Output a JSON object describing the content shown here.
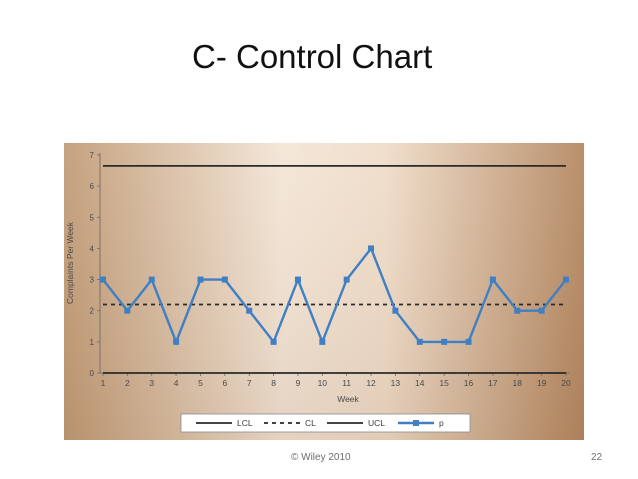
{
  "slide": {
    "title": "C- Control Chart",
    "copyright": "© Wiley 2010",
    "page_number": "22"
  },
  "chart_data": {
    "type": "line",
    "xlabel": "Week",
    "ylabel": "Complaints Per Week",
    "x": [
      1,
      2,
      3,
      4,
      5,
      6,
      7,
      8,
      9,
      10,
      11,
      12,
      13,
      14,
      15,
      16,
      17,
      18,
      19,
      20
    ],
    "xlim": [
      1,
      20
    ],
    "ylim": [
      0,
      7
    ],
    "yticks": [
      0,
      1,
      2,
      3,
      4,
      5,
      6,
      7
    ],
    "grid": false,
    "legend_position": "bottom",
    "series": [
      {
        "name": "LCL",
        "style": "solid",
        "color": "#2a2a2a",
        "values": [
          0,
          0,
          0,
          0,
          0,
          0,
          0,
          0,
          0,
          0,
          0,
          0,
          0,
          0,
          0,
          0,
          0,
          0,
          0,
          0
        ]
      },
      {
        "name": "CL",
        "style": "dashed",
        "color": "#2a2a2a",
        "values": [
          2.2,
          2.2,
          2.2,
          2.2,
          2.2,
          2.2,
          2.2,
          2.2,
          2.2,
          2.2,
          2.2,
          2.2,
          2.2,
          2.2,
          2.2,
          2.2,
          2.2,
          2.2,
          2.2,
          2.2
        ]
      },
      {
        "name": "UCL",
        "style": "solid",
        "color": "#2a2a2a",
        "values": [
          6.65,
          6.65,
          6.65,
          6.65,
          6.65,
          6.65,
          6.65,
          6.65,
          6.65,
          6.65,
          6.65,
          6.65,
          6.65,
          6.65,
          6.65,
          6.65,
          6.65,
          6.65,
          6.65,
          6.65
        ]
      },
      {
        "name": "p",
        "style": "solid-square-markers",
        "color": "#3f7fc4",
        "values": [
          3,
          2,
          3,
          1,
          3,
          3,
          2,
          1,
          3,
          1,
          3,
          4,
          2,
          1,
          1,
          1,
          3,
          2,
          2,
          3
        ]
      }
    ]
  }
}
